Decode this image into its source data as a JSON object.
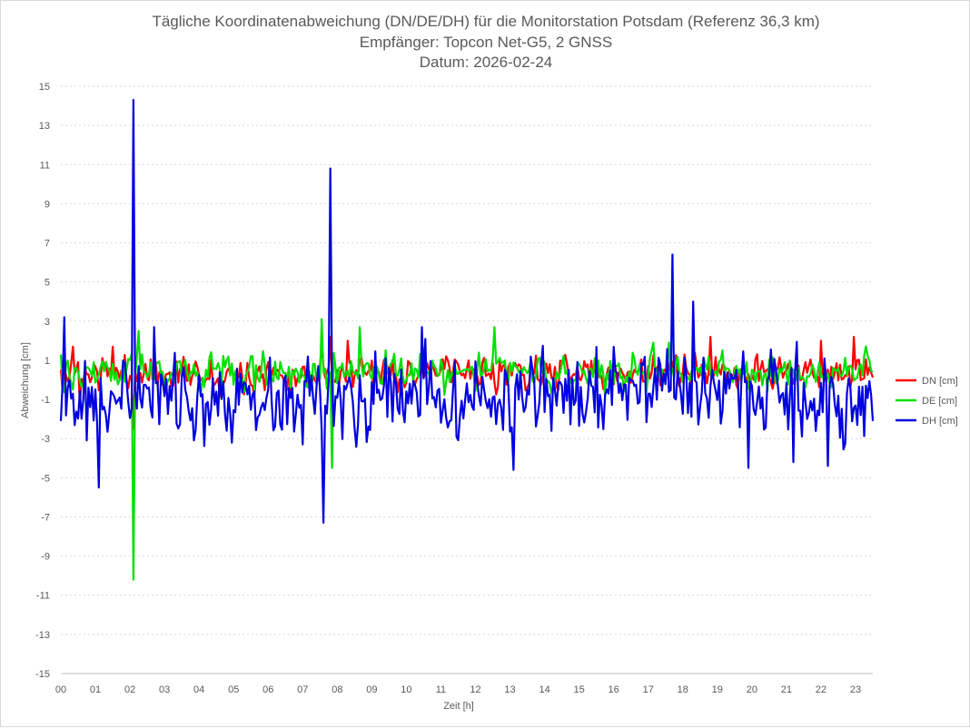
{
  "chart_data": {
    "type": "line",
    "title": [
      "Tägliche Koordinatenabweichung (DN/DE/DH) für die Monitorstation Potsdam (Referenz 36,3 km)",
      "Empfänger: Topcon Net-G5, 2 GNSS",
      "Datum: 2026-02-24"
    ],
    "xlabel": "Zeit [h]",
    "ylabel": "Abweichung [cm]",
    "xlim": [
      0,
      23.5
    ],
    "ylim": [
      -15,
      15
    ],
    "x_ticks": [
      0,
      1,
      2,
      3,
      4,
      5,
      6,
      7,
      8,
      9,
      10,
      11,
      12,
      13,
      14,
      15,
      16,
      17,
      18,
      19,
      20,
      21,
      22,
      23
    ],
    "x_tick_labels": [
      "00",
      "01",
      "02",
      "03",
      "04",
      "05",
      "06",
      "07",
      "08",
      "09",
      "10",
      "11",
      "12",
      "13",
      "14",
      "15",
      "16",
      "17",
      "18",
      "19",
      "20",
      "21",
      "22",
      "23"
    ],
    "y_ticks": [
      15,
      13,
      11,
      9,
      7,
      5,
      3,
      1,
      -1,
      -3,
      -5,
      -7,
      -9,
      -11,
      -13,
      -15
    ],
    "y_tick_labels": [
      "15",
      "13",
      "11",
      "9",
      "7",
      "5",
      "3",
      "1",
      "-1",
      "-3",
      "-5",
      "-7",
      "-9",
      "-11",
      "-13",
      "-15"
    ],
    "grid": "horizontal dotted",
    "legend_position": "right",
    "sample_interval_h": 0.05,
    "series": [
      {
        "name": "DN [cm]",
        "color": "#ff0000",
        "seed": 11,
        "base": 0.35,
        "noise": 0.55,
        "hf": 0.45,
        "spikes": [
          {
            "x": 0.05,
            "y": -0.6
          },
          {
            "x": 0.35,
            "y": 1.7
          },
          {
            "x": 0.55,
            "y": -1.3
          },
          {
            "x": 1.5,
            "y": 1.7
          },
          {
            "x": 2.1,
            "y": -2.5
          },
          {
            "x": 7.55,
            "y": 1.7
          },
          {
            "x": 7.8,
            "y": 2.2
          },
          {
            "x": 8.3,
            "y": 2.0
          },
          {
            "x": 12.7,
            "y": 1.0
          },
          {
            "x": 18.8,
            "y": 2.2
          },
          {
            "x": 22.0,
            "y": 2.0
          },
          {
            "x": 22.95,
            "y": 2.2
          }
        ]
      },
      {
        "name": "DE [cm]",
        "color": "#00e000",
        "seed": 29,
        "base": 0.4,
        "noise": 0.6,
        "hf": 0.5,
        "spikes": [
          {
            "x": 0.0,
            "y": 1.3
          },
          {
            "x": 2.1,
            "y": -10.2
          },
          {
            "x": 2.25,
            "y": 2.5
          },
          {
            "x": 7.55,
            "y": 3.1
          },
          {
            "x": 7.85,
            "y": -4.5
          },
          {
            "x": 8.65,
            "y": 2.7
          },
          {
            "x": 12.55,
            "y": 2.7
          },
          {
            "x": 17.15,
            "y": 1.9
          },
          {
            "x": 17.6,
            "y": 1.9
          }
        ]
      },
      {
        "name": "DH [cm]",
        "color": "#0000e0",
        "seed": 47,
        "base": -0.8,
        "noise": 1.4,
        "hf": 1.1,
        "spikes": [
          {
            "x": 0.0,
            "y": -2.1
          },
          {
            "x": 0.1,
            "y": 3.2
          },
          {
            "x": 1.1,
            "y": -5.5
          },
          {
            "x": 2.1,
            "y": 14.3
          },
          {
            "x": 2.25,
            "y": 0.7
          },
          {
            "x": 2.7,
            "y": 2.7
          },
          {
            "x": 7.6,
            "y": -7.3
          },
          {
            "x": 7.8,
            "y": 10.8
          },
          {
            "x": 10.45,
            "y": 2.7
          },
          {
            "x": 13.1,
            "y": -4.6
          },
          {
            "x": 17.7,
            "y": 6.4
          },
          {
            "x": 18.3,
            "y": 4.0
          },
          {
            "x": 19.9,
            "y": -4.5
          },
          {
            "x": 21.2,
            "y": -4.2
          },
          {
            "x": 22.2,
            "y": -4.4
          },
          {
            "x": 23.5,
            "y": -2.1
          }
        ]
      }
    ]
  }
}
